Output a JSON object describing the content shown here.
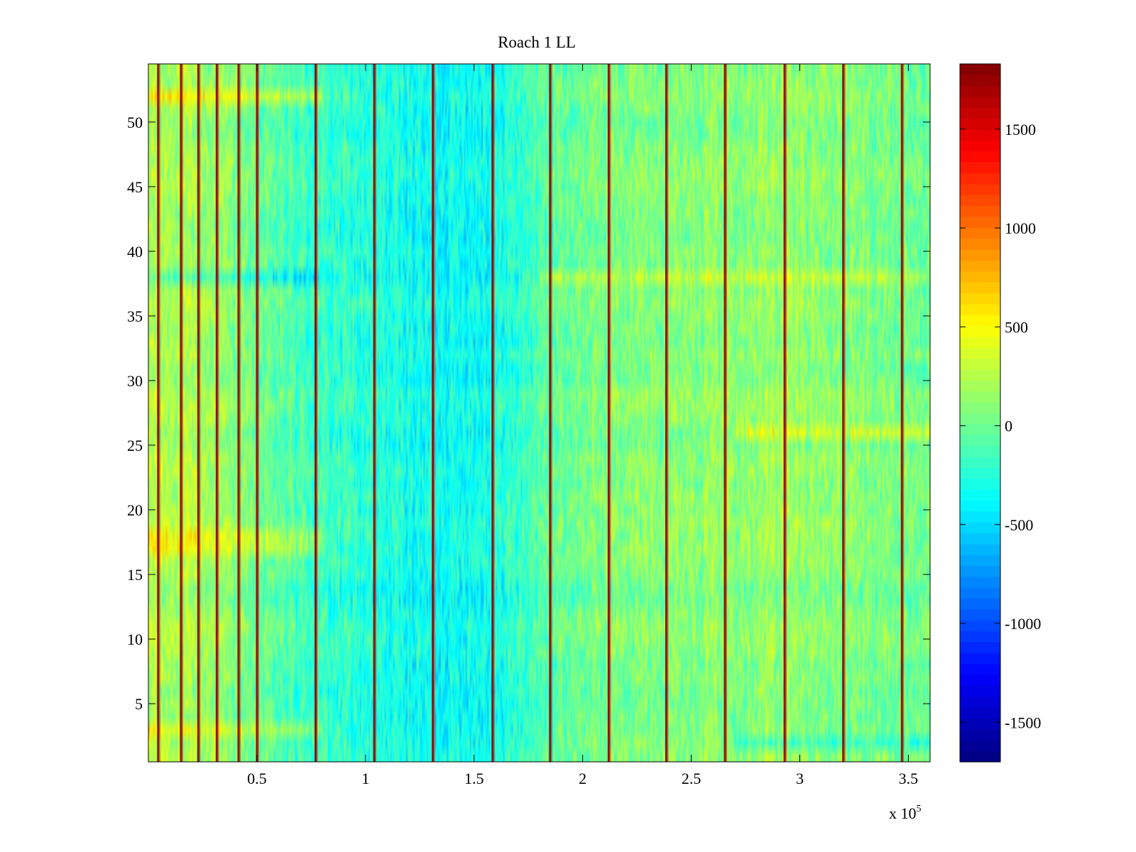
{
  "chart_data": {
    "type": "heatmap",
    "title": "Roach 1 LL",
    "xlabel": "",
    "ylabel": "",
    "x_multiplier_label": {
      "base": "x 10",
      "exponent": "5"
    },
    "xlim": [
      0.0,
      3.6
    ],
    "ylim": [
      0.5,
      54.5
    ],
    "rows": 54,
    "x_ticks": [
      {
        "value": 0.5,
        "label": "0.5"
      },
      {
        "value": 1.0,
        "label": "1"
      },
      {
        "value": 1.5,
        "label": "1.5"
      },
      {
        "value": 2.0,
        "label": "2"
      },
      {
        "value": 2.5,
        "label": "2.5"
      },
      {
        "value": 3.0,
        "label": "3"
      },
      {
        "value": 3.5,
        "label": "3.5"
      }
    ],
    "y_ticks": [
      {
        "value": 5,
        "label": "5"
      },
      {
        "value": 10,
        "label": "10"
      },
      {
        "value": 15,
        "label": "15"
      },
      {
        "value": 20,
        "label": "20"
      },
      {
        "value": 25,
        "label": "25"
      },
      {
        "value": 30,
        "label": "30"
      },
      {
        "value": 35,
        "label": "35"
      },
      {
        "value": 40,
        "label": "40"
      },
      {
        "value": 45,
        "label": "45"
      },
      {
        "value": 50,
        "label": "50"
      }
    ],
    "colorbar": {
      "colormap": "jet",
      "clim": [
        -1700,
        1830
      ],
      "ticks": [
        {
          "value": 1500,
          "label": "1500"
        },
        {
          "value": 1000,
          "label": "1000"
        },
        {
          "value": 500,
          "label": "500"
        },
        {
          "value": 0,
          "label": "0"
        },
        {
          "value": -500,
          "label": "-500"
        },
        {
          "value": -1000,
          "label": "-1000"
        },
        {
          "value": -1500,
          "label": "-1500"
        }
      ]
    },
    "vertical_stripes_x": [
      0.045,
      0.15,
      0.23,
      0.315,
      0.415,
      0.5,
      0.77,
      1.04,
      1.31,
      1.585,
      1.85,
      2.12,
      2.385,
      2.655,
      2.93,
      3.2,
      3.47
    ],
    "column_trend": {
      "x": [
        0.0,
        0.3,
        0.7,
        1.0,
        1.3,
        1.6,
        1.85,
        2.1,
        2.5,
        2.9,
        3.3,
        3.6
      ],
      "mean_value": [
        250,
        150,
        -150,
        -250,
        -350,
        -300,
        -50,
        50,
        100,
        150,
        50,
        0
      ]
    },
    "row_features": [
      {
        "row": 38,
        "x_range": [
          0.0,
          0.8
        ],
        "value_offset": -250
      },
      {
        "row": 38,
        "x_range": [
          1.8,
          3.6
        ],
        "value_offset": 250
      },
      {
        "row": 26,
        "x_range": [
          2.7,
          3.6
        ],
        "value_offset": 300
      },
      {
        "row": 18,
        "x_range": [
          0.0,
          0.8
        ],
        "value_offset": 250
      },
      {
        "row": 17,
        "x_range": [
          0.0,
          0.8
        ],
        "value_offset": 250
      },
      {
        "row": 52,
        "x_range": [
          0.0,
          0.8
        ],
        "value_offset": 300
      },
      {
        "row": 3,
        "x_range": [
          0.0,
          0.8
        ],
        "value_offset": 250
      },
      {
        "row": 2,
        "x_range": [
          2.7,
          3.6
        ],
        "value_offset": -250
      }
    ],
    "grid": false,
    "legend": "none"
  }
}
